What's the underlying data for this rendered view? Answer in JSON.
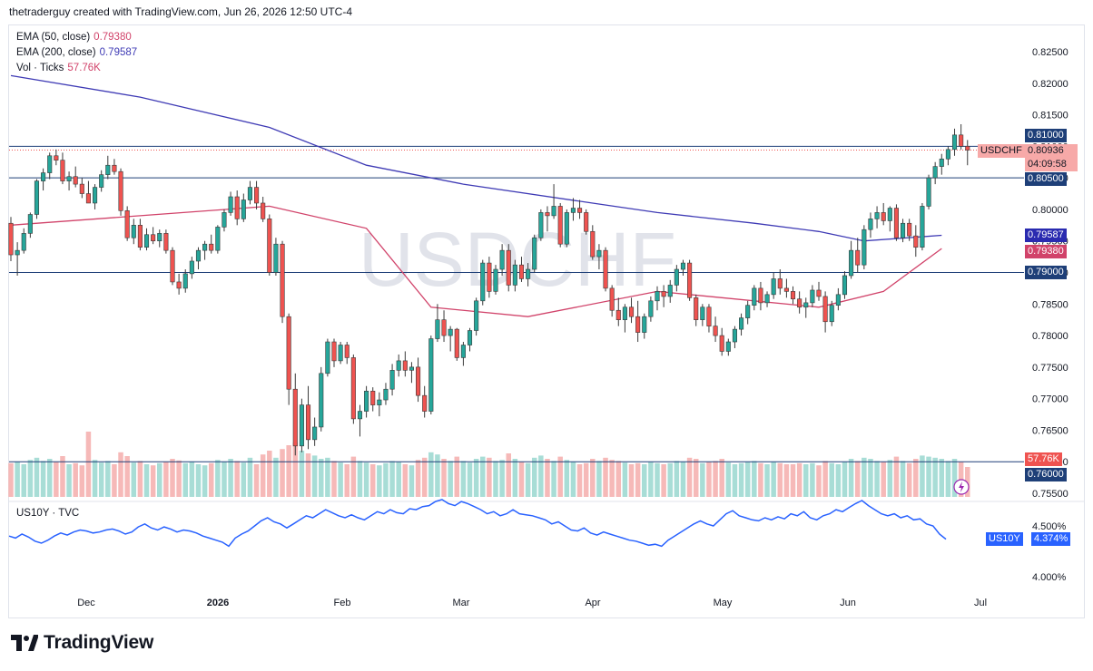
{
  "header": {
    "text": "thetraderguy created with TradingView.com, Jun 26, 2026 12:50 UTC-4"
  },
  "watermark": "USDCHF",
  "legend": {
    "ema50": {
      "label": "EMA (50, close)",
      "value": "0.79380",
      "color": "#d1436a"
    },
    "ema200": {
      "label": "EMA (200, close)",
      "value": "0.79587",
      "color": "#3f3bb5"
    },
    "vol": {
      "label": "Vol · Ticks",
      "value": "57.76K",
      "color": "#d1436a"
    }
  },
  "price_tags": {
    "symbol": "USDCHF",
    "last": "0.80936",
    "countdown": "04:09:58",
    "ema200": "0.79587",
    "ema50": "0.79380",
    "volume": "57.76K",
    "h1": "0.81000",
    "h2": "0.80500",
    "h3": "0.79000",
    "h4": "0.76000"
  },
  "sub_pane": {
    "legend": "US10Y · TVC",
    "symbol": "US10Y",
    "last": "4.374%",
    "y_ticks": [
      "4.500%",
      "4.000%"
    ]
  },
  "footer": {
    "brand": "TradingView"
  },
  "colors": {
    "up": "#26a69a",
    "down": "#ef5350",
    "vol_up": "#a8ddd6",
    "vol_down": "#f6b9b8",
    "ema50": "#d1436a",
    "ema200": "#3f3bb5",
    "line": "#2962ff",
    "hline": "#1e3f78"
  },
  "chart_data": {
    "type": "candlestick",
    "symbol": "USDCHF",
    "ylim": [
      0.755,
      0.8275
    ],
    "y_ticks": [
      "0.82500",
      "0.82000",
      "0.81500",
      "0.81000",
      "0.80500",
      "0.80000",
      "0.79500",
      "0.79000",
      "0.78500",
      "0.78000",
      "0.77500",
      "0.77000",
      "0.76500",
      "0.76000",
      "0.75500"
    ],
    "x_ticks": [
      "Dec",
      "2026",
      "Feb",
      "Mar",
      "Apr",
      "May",
      "Jun",
      "Jul"
    ],
    "horizontal_levels": [
      0.81,
      0.805,
      0.79,
      0.76
    ],
    "candles": [
      [
        0.7978,
        0.7988,
        0.7918,
        0.7928,
        0.62
      ],
      [
        0.7928,
        0.7948,
        0.7895,
        0.7935,
        0.65
      ],
      [
        0.7935,
        0.797,
        0.793,
        0.7962,
        0.6
      ],
      [
        0.7962,
        0.7995,
        0.7955,
        0.7992,
        0.68
      ],
      [
        0.7992,
        0.8048,
        0.7985,
        0.8045,
        0.72
      ],
      [
        0.8045,
        0.8065,
        0.803,
        0.8058,
        0.66
      ],
      [
        0.8058,
        0.809,
        0.8048,
        0.8085,
        0.7
      ],
      [
        0.8085,
        0.8095,
        0.807,
        0.8078,
        0.64
      ],
      [
        0.8078,
        0.809,
        0.804,
        0.8045,
        0.75
      ],
      [
        0.8045,
        0.806,
        0.803,
        0.8052,
        0.6
      ],
      [
        0.8052,
        0.8068,
        0.8035,
        0.804,
        0.62
      ],
      [
        0.804,
        0.805,
        0.8018,
        0.8025,
        0.58
      ],
      [
        0.8025,
        0.8045,
        0.801,
        0.801,
        1.2
      ],
      [
        0.801,
        0.804,
        0.8,
        0.8035,
        0.68
      ],
      [
        0.8035,
        0.8062,
        0.8028,
        0.8055,
        0.63
      ],
      [
        0.8055,
        0.8085,
        0.8048,
        0.807,
        0.66
      ],
      [
        0.807,
        0.808,
        0.8055,
        0.806,
        0.6
      ],
      [
        0.806,
        0.8065,
        0.799,
        0.7998,
        0.82
      ],
      [
        0.7998,
        0.8005,
        0.795,
        0.7955,
        0.75
      ],
      [
        0.7955,
        0.7985,
        0.7945,
        0.7975,
        0.63
      ],
      [
        0.7975,
        0.7985,
        0.7935,
        0.794,
        0.66
      ],
      [
        0.794,
        0.797,
        0.7935,
        0.796,
        0.6
      ],
      [
        0.796,
        0.7972,
        0.7945,
        0.795,
        0.58
      ],
      [
        0.795,
        0.7968,
        0.794,
        0.7962,
        0.62
      ],
      [
        0.7962,
        0.7968,
        0.793,
        0.7935,
        0.64
      ],
      [
        0.7935,
        0.794,
        0.788,
        0.7885,
        0.7
      ],
      [
        0.7885,
        0.7898,
        0.7865,
        0.7875,
        0.67
      ],
      [
        0.7875,
        0.7905,
        0.7868,
        0.7898,
        0.62
      ],
      [
        0.7898,
        0.7925,
        0.789,
        0.7918,
        0.65
      ],
      [
        0.7918,
        0.794,
        0.7905,
        0.7935,
        0.6
      ],
      [
        0.7935,
        0.795,
        0.792,
        0.7945,
        0.58
      ],
      [
        0.7945,
        0.796,
        0.793,
        0.7935,
        0.62
      ],
      [
        0.7935,
        0.7975,
        0.793,
        0.7972,
        0.68
      ],
      [
        0.7972,
        0.8,
        0.7965,
        0.7995,
        0.64
      ],
      [
        0.7995,
        0.8028,
        0.799,
        0.802,
        0.7
      ],
      [
        0.802,
        0.803,
        0.7975,
        0.7985,
        0.66
      ],
      [
        0.7985,
        0.8025,
        0.798,
        0.8015,
        0.63
      ],
      [
        0.8015,
        0.8045,
        0.8008,
        0.8035,
        0.72
      ],
      [
        0.8035,
        0.8045,
        0.8,
        0.801,
        0.6
      ],
      [
        0.801,
        0.802,
        0.798,
        0.7985,
        0.78
      ],
      [
        0.7985,
        0.7992,
        0.7895,
        0.79,
        0.85
      ],
      [
        0.79,
        0.7955,
        0.7895,
        0.7945,
        0.72
      ],
      [
        0.7945,
        0.795,
        0.782,
        0.783,
        0.88
      ],
      [
        0.783,
        0.7835,
        0.769,
        0.7715,
        0.95
      ],
      [
        0.7715,
        0.774,
        0.761,
        0.7625,
        1.0
      ],
      [
        0.7625,
        0.77,
        0.7615,
        0.769,
        0.85
      ],
      [
        0.769,
        0.772,
        0.762,
        0.7635,
        0.8
      ],
      [
        0.7635,
        0.767,
        0.7625,
        0.7655,
        0.76
      ],
      [
        0.7655,
        0.775,
        0.7648,
        0.774,
        0.7
      ],
      [
        0.774,
        0.7795,
        0.7735,
        0.779,
        0.72
      ],
      [
        0.779,
        0.7795,
        0.775,
        0.776,
        0.66
      ],
      [
        0.776,
        0.779,
        0.7755,
        0.7785,
        0.63
      ],
      [
        0.7785,
        0.779,
        0.7755,
        0.7765,
        0.6
      ],
      [
        0.7765,
        0.777,
        0.766,
        0.7668,
        0.74
      ],
      [
        0.7668,
        0.769,
        0.764,
        0.768,
        0.66
      ],
      [
        0.768,
        0.772,
        0.767,
        0.7712,
        0.63
      ],
      [
        0.7712,
        0.7718,
        0.768,
        0.769,
        0.6
      ],
      [
        0.769,
        0.771,
        0.7672,
        0.7698,
        0.58
      ],
      [
        0.7698,
        0.7725,
        0.769,
        0.7715,
        0.62
      ],
      [
        0.7715,
        0.7755,
        0.7705,
        0.7745,
        0.66
      ],
      [
        0.7745,
        0.777,
        0.7735,
        0.776,
        0.64
      ],
      [
        0.776,
        0.7775,
        0.7735,
        0.7745,
        0.6
      ],
      [
        0.7745,
        0.7758,
        0.7725,
        0.775,
        0.58
      ],
      [
        0.775,
        0.7765,
        0.7695,
        0.7705,
        0.68
      ],
      [
        0.7705,
        0.772,
        0.767,
        0.768,
        0.72
      ],
      [
        0.768,
        0.78,
        0.7675,
        0.7795,
        0.82
      ],
      [
        0.7795,
        0.785,
        0.779,
        0.7825,
        0.78
      ],
      [
        0.7825,
        0.784,
        0.779,
        0.78,
        0.7
      ],
      [
        0.78,
        0.7815,
        0.7775,
        0.781,
        0.66
      ],
      [
        0.781,
        0.7812,
        0.776,
        0.7765,
        0.74
      ],
      [
        0.7765,
        0.779,
        0.7752,
        0.7785,
        0.66
      ],
      [
        0.7785,
        0.7812,
        0.7775,
        0.7808,
        0.63
      ],
      [
        0.7808,
        0.786,
        0.78,
        0.7855,
        0.7
      ],
      [
        0.7855,
        0.792,
        0.7848,
        0.7915,
        0.74
      ],
      [
        0.7915,
        0.7925,
        0.786,
        0.787,
        0.72
      ],
      [
        0.787,
        0.7912,
        0.7865,
        0.7905,
        0.66
      ],
      [
        0.7905,
        0.7945,
        0.7895,
        0.7935,
        0.68
      ],
      [
        0.7935,
        0.7945,
        0.787,
        0.788,
        0.8
      ],
      [
        0.788,
        0.792,
        0.787,
        0.7912,
        0.7
      ],
      [
        0.7912,
        0.7925,
        0.7885,
        0.789,
        0.64
      ],
      [
        0.789,
        0.7915,
        0.7878,
        0.7905,
        0.62
      ],
      [
        0.7905,
        0.796,
        0.79,
        0.7955,
        0.72
      ],
      [
        0.7955,
        0.8,
        0.795,
        0.7995,
        0.76
      ],
      [
        0.7995,
        0.8005,
        0.7965,
        0.799,
        0.7
      ],
      [
        0.799,
        0.804,
        0.7985,
        0.8005,
        0.66
      ],
      [
        0.8005,
        0.801,
        0.794,
        0.7945,
        0.74
      ],
      [
        0.7945,
        0.8,
        0.794,
        0.7995,
        0.68
      ],
      [
        0.7995,
        0.8018,
        0.7982,
        0.8002,
        0.64
      ],
      [
        0.8002,
        0.8015,
        0.7985,
        0.7995,
        0.6
      ],
      [
        0.7995,
        0.8,
        0.796,
        0.7965,
        0.62
      ],
      [
        0.7965,
        0.7975,
        0.792,
        0.7925,
        0.7
      ],
      [
        0.7925,
        0.7945,
        0.7905,
        0.7935,
        0.66
      ],
      [
        0.7935,
        0.794,
        0.787,
        0.7875,
        0.72
      ],
      [
        0.7875,
        0.788,
        0.783,
        0.784,
        0.68
      ],
      [
        0.784,
        0.786,
        0.7815,
        0.7825,
        0.66
      ],
      [
        0.7825,
        0.785,
        0.7805,
        0.7845,
        0.63
      ],
      [
        0.7845,
        0.786,
        0.782,
        0.783,
        0.6
      ],
      [
        0.783,
        0.7855,
        0.779,
        0.7805,
        0.62
      ],
      [
        0.7805,
        0.7835,
        0.7795,
        0.783,
        0.6
      ],
      [
        0.783,
        0.7862,
        0.7822,
        0.7855,
        0.64
      ],
      [
        0.7855,
        0.7878,
        0.784,
        0.787,
        0.62
      ],
      [
        0.787,
        0.788,
        0.7845,
        0.7862,
        0.6
      ],
      [
        0.7862,
        0.7888,
        0.7852,
        0.788,
        0.62
      ],
      [
        0.788,
        0.7912,
        0.787,
        0.7905,
        0.66
      ],
      [
        0.7905,
        0.792,
        0.7895,
        0.7915,
        0.64
      ],
      [
        0.7915,
        0.792,
        0.7855,
        0.786,
        0.72
      ],
      [
        0.786,
        0.7865,
        0.7815,
        0.7825,
        0.7
      ],
      [
        0.7825,
        0.785,
        0.7815,
        0.7845,
        0.62
      ],
      [
        0.7845,
        0.785,
        0.7805,
        0.7815,
        0.64
      ],
      [
        0.7815,
        0.783,
        0.779,
        0.78,
        0.66
      ],
      [
        0.78,
        0.7812,
        0.7768,
        0.7775,
        0.7
      ],
      [
        0.7775,
        0.7795,
        0.7768,
        0.779,
        0.63
      ],
      [
        0.779,
        0.7815,
        0.778,
        0.781,
        0.6
      ],
      [
        0.781,
        0.7835,
        0.78,
        0.7828,
        0.62
      ],
      [
        0.7828,
        0.7855,
        0.7818,
        0.7848,
        0.64
      ],
      [
        0.7848,
        0.788,
        0.784,
        0.7875,
        0.66
      ],
      [
        0.7875,
        0.7885,
        0.784,
        0.7852,
        0.62
      ],
      [
        0.7852,
        0.787,
        0.7845,
        0.7865,
        0.6
      ],
      [
        0.7865,
        0.79,
        0.7858,
        0.789,
        0.64
      ],
      [
        0.789,
        0.7905,
        0.7865,
        0.7875,
        0.62
      ],
      [
        0.7875,
        0.789,
        0.786,
        0.787,
        0.6
      ],
      [
        0.787,
        0.7878,
        0.785,
        0.7858,
        0.6
      ],
      [
        0.7858,
        0.787,
        0.7835,
        0.7845,
        0.62
      ],
      [
        0.7845,
        0.786,
        0.7828,
        0.7852,
        0.6
      ],
      [
        0.7852,
        0.788,
        0.7845,
        0.7872,
        0.62
      ],
      [
        0.7872,
        0.7885,
        0.7855,
        0.7862,
        0.58
      ],
      [
        0.7862,
        0.787,
        0.7805,
        0.7822,
        0.66
      ],
      [
        0.7822,
        0.7855,
        0.7815,
        0.7848,
        0.62
      ],
      [
        0.7848,
        0.7875,
        0.784,
        0.7865,
        0.6
      ],
      [
        0.7865,
        0.7902,
        0.7858,
        0.7895,
        0.64
      ],
      [
        0.7895,
        0.795,
        0.789,
        0.7935,
        0.7
      ],
      [
        0.7935,
        0.7955,
        0.79,
        0.7912,
        0.66
      ],
      [
        0.7912,
        0.7975,
        0.7905,
        0.7968,
        0.72
      ],
      [
        0.7968,
        0.7995,
        0.7955,
        0.7985,
        0.7
      ],
      [
        0.7985,
        0.8005,
        0.797,
        0.7995,
        0.66
      ],
      [
        0.7995,
        0.801,
        0.7975,
        0.7982,
        0.64
      ],
      [
        0.7982,
        0.8005,
        0.7965,
        0.8002,
        0.68
      ],
      [
        0.8002,
        0.8008,
        0.795,
        0.7955,
        0.74
      ],
      [
        0.7955,
        0.7985,
        0.7948,
        0.7978,
        0.66
      ],
      [
        0.7978,
        0.7985,
        0.795,
        0.7958,
        0.62
      ],
      [
        0.7958,
        0.7975,
        0.7925,
        0.794,
        0.7
      ],
      [
        0.794,
        0.801,
        0.7935,
        0.8005,
        0.76
      ],
      [
        0.8005,
        0.8055,
        0.8,
        0.805,
        0.74
      ],
      [
        0.805,
        0.8075,
        0.804,
        0.8068,
        0.72
      ],
      [
        0.8068,
        0.8088,
        0.8055,
        0.808,
        0.7
      ],
      [
        0.808,
        0.81,
        0.807,
        0.8095,
        0.66
      ],
      [
        0.8095,
        0.8128,
        0.8085,
        0.8118,
        0.7
      ],
      [
        0.8118,
        0.8135,
        0.8095,
        0.81,
        0.64
      ],
      [
        0.81,
        0.811,
        0.807,
        0.8094,
        0.55
      ]
    ],
    "ema50": [
      [
        0,
        0.7975
      ],
      [
        20,
        0.799
      ],
      [
        40,
        0.8005
      ],
      [
        55,
        0.797
      ],
      [
        65,
        0.7845
      ],
      [
        80,
        0.783
      ],
      [
        100,
        0.787
      ],
      [
        110,
        0.786
      ],
      [
        125,
        0.7845
      ],
      [
        135,
        0.787
      ],
      [
        144,
        0.7938
      ]
    ],
    "ema200": [
      [
        0,
        0.8212
      ],
      [
        20,
        0.8178
      ],
      [
        40,
        0.813
      ],
      [
        55,
        0.807
      ],
      [
        70,
        0.804
      ],
      [
        90,
        0.801
      ],
      [
        100,
        0.7995
      ],
      [
        115,
        0.7978
      ],
      [
        125,
        0.7965
      ],
      [
        132,
        0.795
      ],
      [
        144,
        0.7959
      ]
    ],
    "us10y": [
      4.4,
      4.38,
      4.42,
      4.39,
      4.35,
      4.33,
      4.36,
      4.4,
      4.43,
      4.41,
      4.44,
      4.46,
      4.45,
      4.43,
      4.44,
      4.46,
      4.47,
      4.45,
      4.42,
      4.44,
      4.49,
      4.52,
      4.48,
      4.46,
      4.49,
      4.47,
      4.44,
      4.46,
      4.45,
      4.43,
      4.4,
      4.38,
      4.36,
      4.34,
      4.3,
      4.38,
      4.42,
      4.45,
      4.5,
      4.55,
      4.58,
      4.54,
      4.52,
      4.48,
      4.52,
      4.56,
      4.6,
      4.58,
      4.62,
      4.66,
      4.63,
      4.6,
      4.58,
      4.61,
      4.58,
      4.56,
      4.6,
      4.64,
      4.62,
      4.66,
      4.63,
      4.62,
      4.67,
      4.66,
      4.69,
      4.7,
      4.74,
      4.76,
      4.72,
      4.7,
      4.74,
      4.72,
      4.69,
      4.66,
      4.62,
      4.64,
      4.6,
      4.62,
      4.66,
      4.62,
      4.61,
      4.6,
      4.58,
      4.56,
      4.52,
      4.54,
      4.5,
      4.46,
      4.45,
      4.48,
      4.43,
      4.41,
      4.44,
      4.42,
      4.4,
      4.38,
      4.36,
      4.35,
      4.33,
      4.31,
      4.32,
      4.3,
      4.36,
      4.4,
      4.44,
      4.48,
      4.52,
      4.55,
      4.52,
      4.5,
      4.56,
      4.62,
      4.65,
      4.6,
      4.58,
      4.56,
      4.55,
      4.58,
      4.56,
      4.59,
      4.57,
      4.62,
      4.6,
      4.64,
      4.58,
      4.56,
      4.6,
      4.62,
      4.66,
      4.64,
      4.68,
      4.72,
      4.75,
      4.7,
      4.66,
      4.62,
      4.6,
      4.62,
      4.58,
      4.6,
      4.56,
      4.57,
      4.52,
      4.5,
      4.42,
      4.37
    ]
  }
}
